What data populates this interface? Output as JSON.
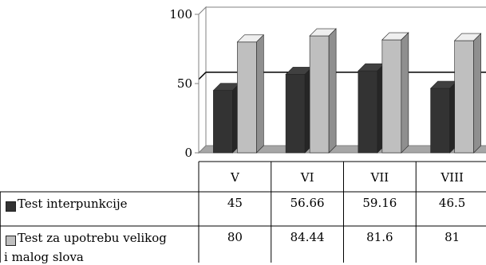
{
  "chart_data": {
    "type": "bar",
    "categories": [
      "V",
      "VI",
      "VII",
      "VIII"
    ],
    "series": [
      {
        "name": "Test interpunkcije",
        "values": [
          45,
          56.66,
          59.16,
          46.5
        ],
        "color": "#333333",
        "value_labels": [
          "45",
          "56.66",
          "59.16",
          "46.5"
        ]
      },
      {
        "name": "Test za upotrebu velikog i malog slova",
        "name_lines": [
          "Test za upotrebu velikog",
          "i malog slova"
        ],
        "values": [
          80,
          84.44,
          81.6,
          81
        ],
        "color": "#bfbfbf",
        "value_labels": [
          "80",
          "84.44",
          "81.6",
          "81"
        ]
      }
    ],
    "ylim": [
      0,
      100
    ],
    "yticks": [
      0,
      50,
      100
    ],
    "ytick_labels": [
      "0",
      "50",
      "100"
    ],
    "reference_line": 53,
    "style": "3d-column",
    "data_table": true,
    "title": "",
    "xlabel": "",
    "ylabel": ""
  }
}
